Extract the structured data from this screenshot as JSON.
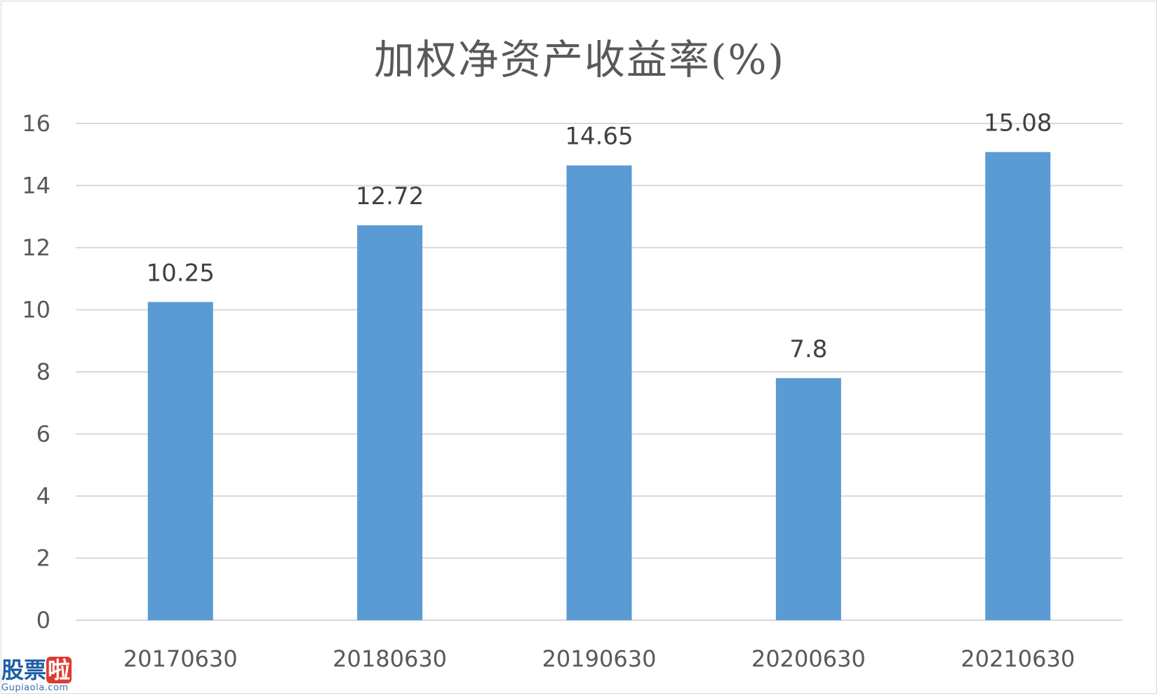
{
  "chart_data": {
    "type": "bar",
    "title": "加权净资产收益率(%)",
    "categories": [
      "20170630",
      "20180630",
      "20190630",
      "20200630",
      "20210630"
    ],
    "values": [
      10.25,
      12.72,
      14.65,
      7.8,
      15.08
    ],
    "data_labels": [
      "10.25",
      "12.72",
      "14.65",
      "7.8",
      "15.08"
    ],
    "y_ticks": [
      "0",
      "2",
      "4",
      "6",
      "8",
      "10",
      "12",
      "14",
      "16"
    ],
    "ylim": [
      0,
      16
    ],
    "grid": true,
    "bar_color": "#5b9bd5",
    "grid_color": "#d9d9d9"
  },
  "watermark": {
    "text": "股票啦",
    "subtext": "Gupiaola.com"
  }
}
